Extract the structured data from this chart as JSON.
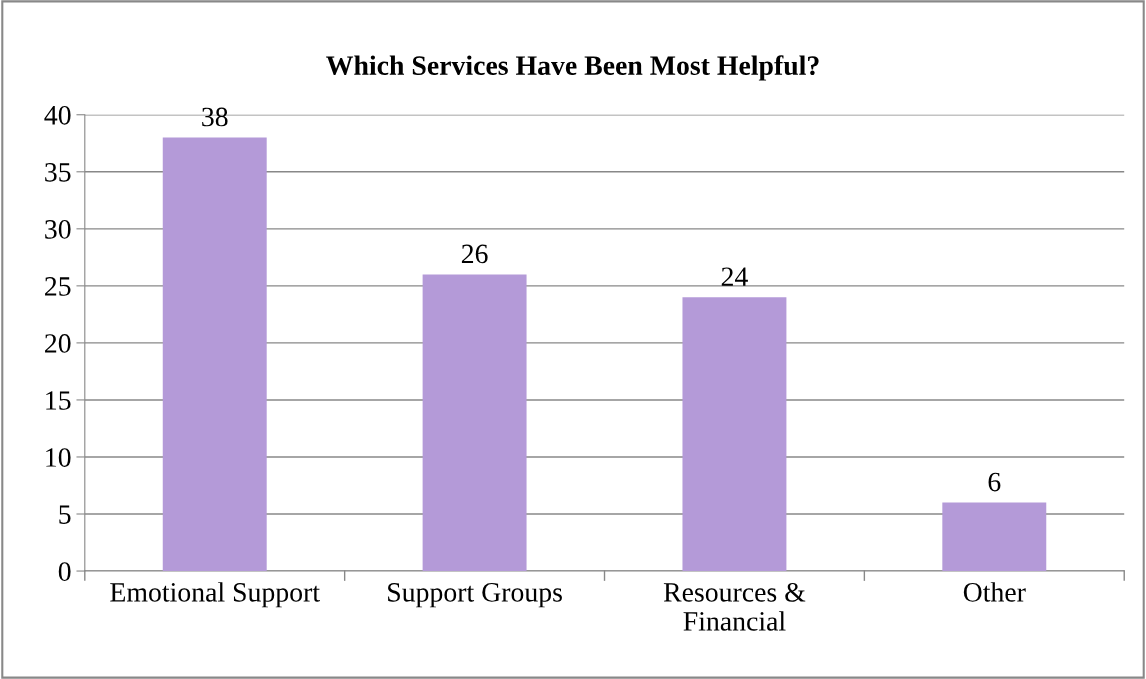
{
  "chart_data": {
    "type": "bar",
    "title": "Which Services Have Been Most Helpful?",
    "categories": [
      "Emotional Support",
      "Support Groups",
      "Resources &\nFinancial",
      "Other"
    ],
    "values": [
      38,
      26,
      24,
      6
    ],
    "color": "#b49ad8",
    "ylim": [
      0,
      40
    ],
    "yticks": [
      0,
      5,
      10,
      15,
      20,
      25,
      30,
      35,
      40
    ],
    "grid": "y",
    "data_labels": true,
    "legend": false
  }
}
